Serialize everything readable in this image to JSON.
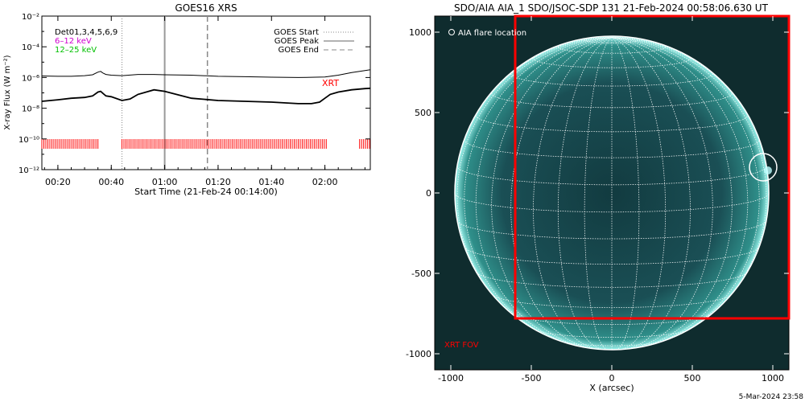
{
  "chart_data": [
    {
      "type": "line",
      "title": "GOES16 XRS",
      "xlabel": "Start Time (21-Feb-24 00:14:00)",
      "ylabel": "X-ray Flux (W m⁻²)",
      "ylog": true,
      "xlim_min": [
        14,
        137
      ],
      "ylim_exp": [
        -12,
        -2
      ],
      "x_ticks": [
        {
          "min": 20,
          "label": "00:20"
        },
        {
          "min": 40,
          "label": "00:40"
        },
        {
          "min": 60,
          "label": "01:00"
        },
        {
          "min": 80,
          "label": "01:20"
        },
        {
          "min": 100,
          "label": "01:40"
        },
        {
          "min": 120,
          "label": "02:00"
        }
      ],
      "y_ticks": [
        {
          "exp": -2,
          "label": "10⁻²"
        },
        {
          "exp": -4,
          "label": "10⁻⁴"
        },
        {
          "exp": -6,
          "label": "10⁻⁶"
        },
        {
          "exp": -8,
          "label": "10⁻⁸"
        },
        {
          "exp": -10,
          "label": "10⁻¹⁰"
        },
        {
          "exp": -12,
          "label": "10⁻¹²"
        }
      ],
      "legend_left": [
        {
          "text": "Det01,3,4,5,6,9",
          "color": "#000000"
        },
        {
          "text": "6–12 keV",
          "color": "#d000d0"
        },
        {
          "text": "12–25 keV",
          "color": "#00c000"
        }
      ],
      "legend_right": [
        {
          "text": "GOES Start",
          "style": "dotted"
        },
        {
          "text": "GOES Peak",
          "style": "solid"
        },
        {
          "text": "GOES End",
          "style": "dashed"
        }
      ],
      "markers_min": {
        "start": 44,
        "peak": 60,
        "end": 76
      },
      "series": [
        {
          "name": "long",
          "x": [
            14,
            20,
            25,
            30,
            33,
            35,
            36,
            37,
            38,
            40,
            44,
            50,
            56,
            60,
            70,
            80,
            90,
            100,
            110,
            120,
            125,
            130,
            135,
            137
          ],
          "y_exp": [
            -5.9,
            -5.92,
            -5.92,
            -5.88,
            -5.82,
            -5.65,
            -5.6,
            -5.72,
            -5.8,
            -5.85,
            -5.88,
            -5.8,
            -5.8,
            -5.82,
            -5.85,
            -5.92,
            -5.95,
            -5.98,
            -6.0,
            -5.97,
            -5.85,
            -5.68,
            -5.55,
            -5.5
          ]
        },
        {
          "name": "short",
          "x": [
            14,
            20,
            25,
            30,
            33,
            35,
            36,
            37,
            38,
            40,
            44,
            47,
            50,
            56,
            60,
            70,
            80,
            90,
            100,
            110,
            115,
            118,
            120,
            122,
            125,
            130,
            135,
            137
          ],
          "y_exp": [
            -7.55,
            -7.45,
            -7.35,
            -7.3,
            -7.2,
            -6.95,
            -6.9,
            -7.05,
            -7.2,
            -7.25,
            -7.5,
            -7.4,
            -7.1,
            -6.8,
            -6.9,
            -7.35,
            -7.5,
            -7.55,
            -7.6,
            -7.7,
            -7.7,
            -7.6,
            -7.35,
            -7.1,
            -6.95,
            -6.8,
            -6.72,
            -6.7
          ]
        }
      ],
      "xrt_label": "XRT",
      "xrt_obs_min": [
        [
          14,
          35
        ],
        [
          44,
          121
        ],
        [
          133,
          137
        ]
      ]
    },
    {
      "type": "image",
      "title": "SDO/AIA AIA_1 SDO/JSOC-SDP 131 21-Feb-2024 00:58:06.630 UT",
      "xlabel": "X (arcsec)",
      "xlim": [
        -1100,
        1100
      ],
      "ylim": [
        -1100,
        1100
      ],
      "x_ticks": [
        -1000,
        -500,
        0,
        500,
        1000
      ],
      "y_ticks": [
        -1000,
        -500,
        0,
        500,
        1000
      ],
      "disk_radius_arcsec": 975,
      "flare_location_label": "AIA flare location",
      "flare_location_arcsec": [
        940,
        160
      ],
      "flare_circle_radius_arcsec": 85,
      "xrt_fov_label": "XRT FOV",
      "xrt_fov_arcsec": {
        "x": [
          -600,
          1100
        ],
        "y": [
          -780,
          1100
        ]
      },
      "colors": {
        "disk": "#1f6f6e",
        "limb": "#8ef0e8",
        "grid": "#ffffff",
        "fov": "#ff0000"
      }
    }
  ],
  "footer_date": "5-Mar-2024 23:58"
}
